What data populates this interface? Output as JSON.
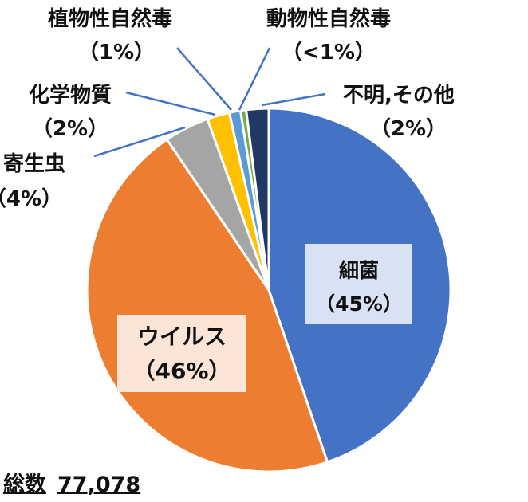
{
  "chart_data": {
    "type": "pie",
    "start_angle_deg": 0,
    "direction": "clockwise",
    "slices": [
      {
        "label": "細菌",
        "value": 45.0,
        "display": "（45%）",
        "color": "#4472C4"
      },
      {
        "label": "ウイルス",
        "value": 46.0,
        "display": "（46%）",
        "color": "#ED7D31"
      },
      {
        "label": "寄生虫",
        "value": 4.0,
        "display": "（4%）",
        "color": "#A5A5A5"
      },
      {
        "label": "化学物質",
        "value": 2.0,
        "display": "（2%）",
        "color": "#FFC000"
      },
      {
        "label": "植物性自然毒",
        "value": 1.0,
        "display": "（1%）",
        "color": "#5B9BD5"
      },
      {
        "label": "動物性自然毒",
        "value": 0.5,
        "display": "（<1%）",
        "color": "#70AD47"
      },
      {
        "label": "不明,その他",
        "value": 2.0,
        "display": "（2%）",
        "color": "#203864"
      }
    ]
  },
  "total": {
    "label": "総数",
    "value": "77,078"
  }
}
